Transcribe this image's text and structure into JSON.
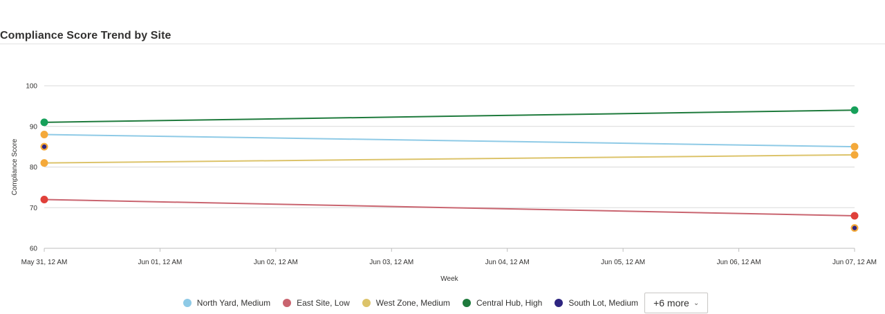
{
  "title": "Compliance Score Trend by Site",
  "chart_data": {
    "type": "line",
    "x": [
      "May 31, 12 AM",
      "Jun 07, 12 AM"
    ],
    "x_ticks": [
      "May 31, 12 AM",
      "Jun 01, 12 AM",
      "Jun 02, 12 AM",
      "Jun 03, 12 AM",
      "Jun 04, 12 AM",
      "Jun 05, 12 AM",
      "Jun 06, 12 AM",
      "Jun 07, 12 AM"
    ],
    "xlabel": "Week",
    "ylabel": "Compliance Score",
    "ylim": [
      60,
      100
    ],
    "y_ticks": [
      60,
      70,
      80,
      90,
      100
    ],
    "grid": true,
    "legend_position": "bottom",
    "series": [
      {
        "name": "North Yard, Medium",
        "color": "#8ecae6",
        "values": [
          88,
          85
        ],
        "marker_color": "#f4a93a"
      },
      {
        "name": "East Site, Low",
        "color": "#c9646f",
        "values": [
          72,
          68
        ],
        "marker_color": "#e0403a"
      },
      {
        "name": "West Zone, Medium",
        "color": "#dcc36a",
        "values": [
          81,
          83
        ],
        "marker_color": "#f4a93a"
      },
      {
        "name": "Central Hub, High",
        "color": "#1e7a3c",
        "values": [
          91,
          94
        ],
        "marker_color": "#16a05a"
      },
      {
        "name": "South Lot, Medium",
        "color": "#2e2580",
        "values": [
          85,
          65
        ],
        "marker_color": "#2e2580",
        "marker_ring": "#f4a93a",
        "no_line": true
      }
    ]
  },
  "legend": {
    "more_label": "+6 more"
  }
}
